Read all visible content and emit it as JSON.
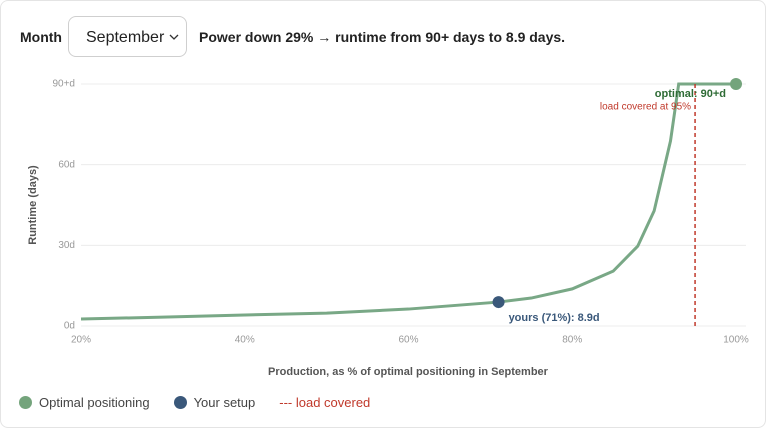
{
  "header": {
    "month_label": "Month",
    "month_value": "September",
    "message": "Power down 29% → runtime from 90+ days to 8.9 days."
  },
  "chart_data": {
    "type": "line",
    "x": [
      20,
      30,
      40,
      50,
      60,
      71,
      75,
      80,
      85,
      88,
      90,
      92,
      93,
      100
    ],
    "values": [
      2.6,
      3.3,
      4.1,
      4.8,
      6.3,
      8.9,
      10.4,
      13.8,
      20.4,
      29.7,
      42.8,
      68.8,
      90,
      90
    ],
    "color": "#79a886",
    "xlabel": "Production, as % of optimal positioning in September",
    "ylabel": "Runtime (days)",
    "xlim": [
      20,
      100
    ],
    "ylim": [
      0,
      90
    ],
    "xticks": [
      {
        "value": 20,
        "label": "20%"
      },
      {
        "value": 40,
        "label": "40%"
      },
      {
        "value": 60,
        "label": "60%"
      },
      {
        "value": 80,
        "label": "80%"
      },
      {
        "value": 100,
        "label": "100%"
      }
    ],
    "yticks": [
      {
        "value": 0,
        "label": "0d"
      },
      {
        "value": 30,
        "label": "30d"
      },
      {
        "value": 60,
        "label": "60d"
      },
      {
        "value": 90,
        "label": "90+d"
      }
    ],
    "grid": true,
    "markers": [
      {
        "name": "Optimal positioning",
        "color": "#74a47c",
        "label_color": "#2e6b35",
        "x": 100,
        "y": 90,
        "label": "optimal: 90+d"
      },
      {
        "name": "Your setup",
        "color": "#3a587a",
        "label_color": "#3a587a",
        "x": 71,
        "y": 8.9,
        "label": "yours (71%): 8.9d"
      }
    ],
    "reference": {
      "x": 95,
      "label": "load covered at 95%",
      "legend": "--- load covered",
      "color": "#c0392b"
    }
  }
}
